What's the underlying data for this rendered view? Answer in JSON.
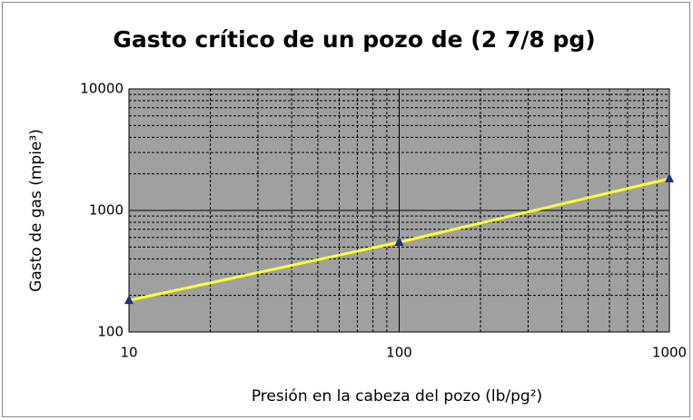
{
  "chart_data": {
    "type": "line",
    "title": "Gasto crítico de un pozo de (2 7/8 pg)",
    "x_label": "Presión en la cabeza del pozo (lb/pg²)",
    "y_label": "Gasto de gas (mpie³)",
    "x": [
      10,
      100,
      1000
    ],
    "values": [
      182,
      548,
      1825
    ],
    "line_color": "#ffff33",
    "marker_color": "#1f2f8f",
    "plot_background": "#a0a0a0",
    "xlim": [
      10,
      1000
    ],
    "xticks": [
      10,
      100,
      1000
    ],
    "ylim": [
      100,
      10000
    ],
    "yticks": [
      100,
      1000,
      10000
    ],
    "x_log": true,
    "y_log": true,
    "grid": true,
    "minor_grid": true
  }
}
